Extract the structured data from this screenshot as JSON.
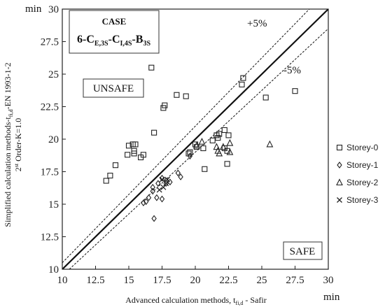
{
  "chart_data": {
    "type": "scatter",
    "x_range": [
      10,
      30
    ],
    "y_range": [
      10,
      30
    ],
    "x_ticks": [
      "10",
      "12.5",
      "15",
      "17.5",
      "20",
      "22.5",
      "25",
      "27.5",
      "30"
    ],
    "y_ticks": [
      "10",
      "12.5",
      "15",
      "17.5",
      "20",
      "22.5",
      "25",
      "27.5",
      "30"
    ],
    "x_unit": "min",
    "y_unit": "min",
    "xlabel_main": "Advanced calculation methods, t",
    "xlabel_sub": "fi,d",
    "xlabel_end": " - Safir",
    "ylabel_line1_main": "Simplified calculation methods-t",
    "ylabel_line1_sub": "fi,d",
    "ylabel_line1_end": "-EN 1993-1-2",
    "ylabel_line2_main": "2",
    "ylabel_line2_sup": "st",
    "ylabel_line2_end": " Order-K=1.0",
    "case_title": "CASE",
    "case_parts": [
      {
        "t": "6-C",
        "sub": ""
      },
      {
        "t": "",
        "sub": "E,3S"
      },
      {
        "t": "-C",
        "sub": ""
      },
      {
        "t": "",
        "sub": "I,4S"
      },
      {
        "t": "-B",
        "sub": ""
      },
      {
        "t": "",
        "sub": "3S"
      }
    ],
    "unsafe_label": "UNSAFE",
    "safe_label": "SAFE",
    "plus_label": "+5%",
    "minus_label": "-5%",
    "grid": false,
    "legend_position": "right",
    "series": [
      {
        "name": "Storey-0",
        "marker": "square",
        "points": [
          [
            13.3,
            16.8
          ],
          [
            13.6,
            17.2
          ],
          [
            14.0,
            18.0
          ],
          [
            14.9,
            18.8
          ],
          [
            15.0,
            19.5
          ],
          [
            15.3,
            19.6
          ],
          [
            15.5,
            19.6
          ],
          [
            15.4,
            19.1
          ],
          [
            15.4,
            18.9
          ],
          [
            15.9,
            18.6
          ],
          [
            16.1,
            18.8
          ],
          [
            16.7,
            25.5
          ],
          [
            16.9,
            20.5
          ],
          [
            17.6,
            22.4
          ],
          [
            17.7,
            22.6
          ],
          [
            18.6,
            23.4
          ],
          [
            19.3,
            23.3
          ],
          [
            19.5,
            18.9
          ],
          [
            19.6,
            19.0
          ],
          [
            20.0,
            19.6
          ],
          [
            20.1,
            19.4
          ],
          [
            20.6,
            19.3
          ],
          [
            20.7,
            17.7
          ],
          [
            21.3,
            19.9
          ],
          [
            21.6,
            20.3
          ],
          [
            21.7,
            20.1
          ],
          [
            21.8,
            20.4
          ],
          [
            22.2,
            20.7
          ],
          [
            22.2,
            19.3
          ],
          [
            22.4,
            18.1
          ],
          [
            22.4,
            19.1
          ],
          [
            22.5,
            20.3
          ],
          [
            23.5,
            24.2
          ],
          [
            23.6,
            24.7
          ],
          [
            25.3,
            23.2
          ],
          [
            27.5,
            23.7
          ]
        ]
      },
      {
        "name": "Storey-1",
        "marker": "diamond",
        "points": [
          [
            16.1,
            15.1
          ],
          [
            16.3,
            15.2
          ],
          [
            16.5,
            15.5
          ],
          [
            16.8,
            16.3
          ],
          [
            16.8,
            16.0
          ],
          [
            16.9,
            13.9
          ],
          [
            17.1,
            15.5
          ],
          [
            17.2,
            16.6
          ],
          [
            17.5,
            17.0
          ],
          [
            17.5,
            15.4
          ],
          [
            17.8,
            16.8
          ],
          [
            17.8,
            16.6
          ],
          [
            18.1,
            16.7
          ],
          [
            18.7,
            17.4
          ],
          [
            18.9,
            17.1
          ],
          [
            19.6,
            18.7
          ]
        ]
      },
      {
        "name": "Storey-2",
        "marker": "triangle",
        "points": [
          [
            20.1,
            19.5
          ],
          [
            20.5,
            19.8
          ],
          [
            21.6,
            19.4
          ],
          [
            21.7,
            19.1
          ],
          [
            21.8,
            18.9
          ],
          [
            22.1,
            19.4
          ],
          [
            22.6,
            19.7
          ],
          [
            22.6,
            19.0
          ],
          [
            25.6,
            19.6
          ]
        ]
      },
      {
        "name": "Storey-3",
        "marker": "x",
        "points": [
          [
            17.3,
            16.1
          ],
          [
            17.5,
            16.9
          ],
          [
            17.6,
            16.3
          ],
          [
            17.8,
            16.6
          ],
          [
            17.9,
            16.9
          ]
        ]
      }
    ]
  }
}
